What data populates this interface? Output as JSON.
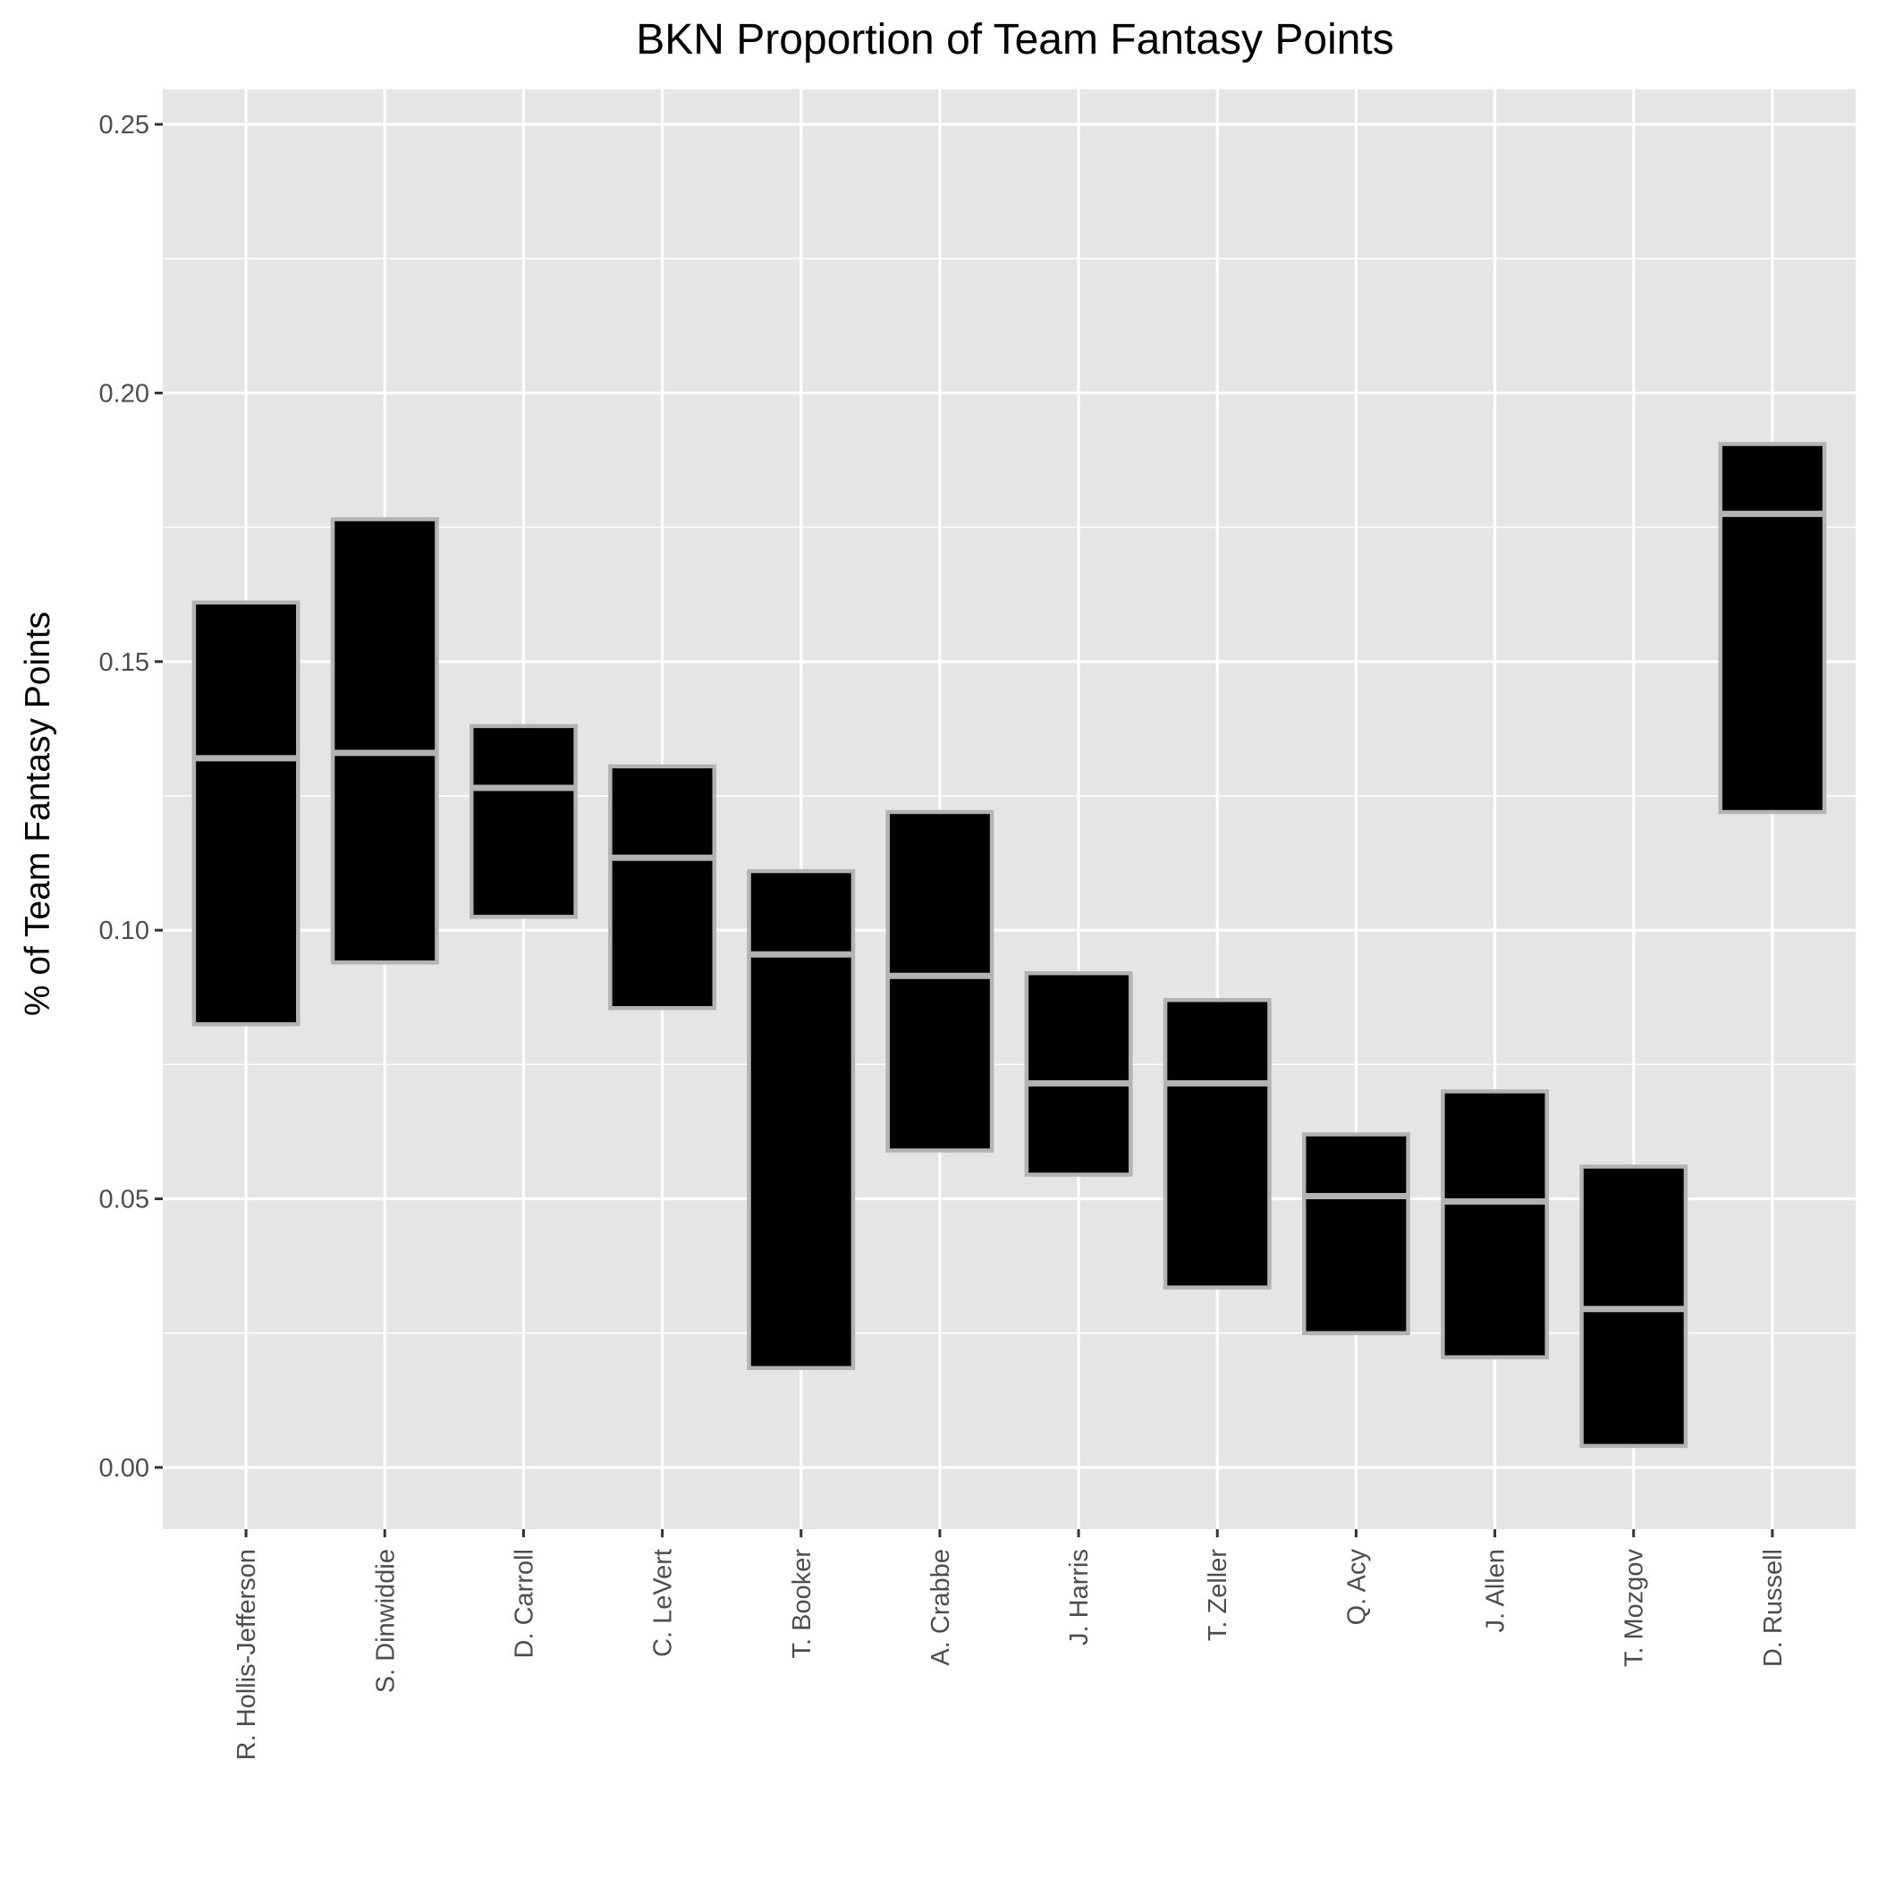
{
  "chart_data": {
    "type": "box",
    "title": "BKN Proportion of Team Fantasy Points",
    "xlabel": "",
    "ylabel": "% of Team Fantasy Points",
    "ylim": [
      -0.0115,
      0.2565
    ],
    "yticks": [
      "0.00",
      "0.05",
      "0.10",
      "0.15",
      "0.20",
      "0.25"
    ],
    "grid": true,
    "categories": [
      "R. Hollis-Jefferson",
      "S. Dinwiddie",
      "D. Carroll",
      "C. LeVert",
      "T. Booker",
      "A. Crabbe",
      "J. Harris",
      "T. Zeller",
      "Q. Acy",
      "J. Allen",
      "T. Mozgov",
      "D. Russell"
    ],
    "series": [
      {
        "values": [
          {
            "low": 0.0825,
            "median": 0.132,
            "high": 0.161
          },
          {
            "low": 0.094,
            "median": 0.133,
            "high": 0.1765
          },
          {
            "low": 0.1025,
            "median": 0.1265,
            "high": 0.138
          },
          {
            "low": 0.0855,
            "median": 0.1135,
            "high": 0.1305
          },
          {
            "low": 0.0185,
            "median": 0.0955,
            "high": 0.111
          },
          {
            "low": 0.059,
            "median": 0.0915,
            "high": 0.122
          },
          {
            "low": 0.0545,
            "median": 0.0715,
            "high": 0.092
          },
          {
            "low": 0.0335,
            "median": 0.0715,
            "high": 0.087
          },
          {
            "low": 0.025,
            "median": 0.0505,
            "high": 0.062
          },
          {
            "low": 0.0205,
            "median": 0.0495,
            "high": 0.07
          },
          {
            "low": 0.004,
            "median": 0.0295,
            "high": 0.056
          },
          {
            "low": 0.122,
            "median": 0.1775,
            "high": 0.1905
          }
        ]
      }
    ]
  }
}
